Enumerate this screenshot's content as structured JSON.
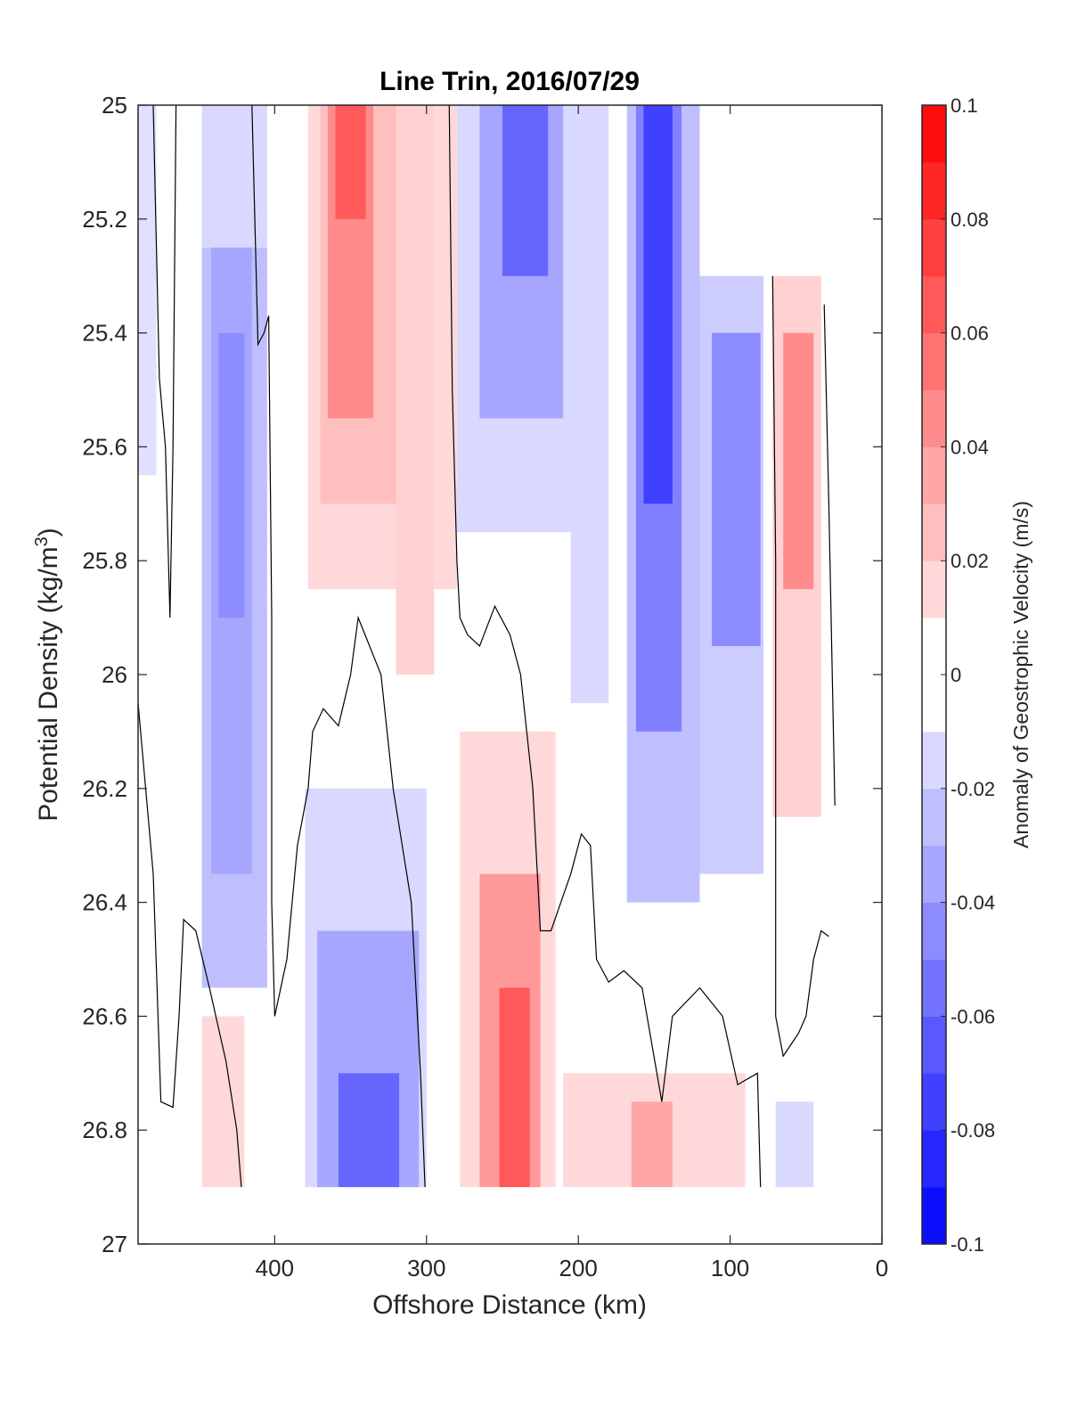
{
  "chart_data": {
    "type": "contour",
    "title": "Line Trin, 2016/07/29",
    "xlabel": "Offshore Distance (km)",
    "ylabel": {
      "text": "Potential Density (kg/m",
      "sup": "3",
      "close": ")"
    },
    "colorbar_label": "Anomaly of Geostrophic Velocity (m/s)",
    "xlim": [
      490,
      0
    ],
    "ylim": [
      25,
      27
    ],
    "y_reversed": true,
    "x_reversed": true,
    "xticks": [
      400,
      300,
      200,
      100,
      0
    ],
    "xtick_labels": [
      "400",
      "300",
      "200",
      "100",
      "0"
    ],
    "yticks": [
      25,
      25.2,
      25.4,
      25.6,
      25.8,
      26,
      26.2,
      26.4,
      26.6,
      26.8,
      27
    ],
    "ytick_labels": [
      "25",
      "25.2",
      "25.4",
      "25.6",
      "25.8",
      "26",
      "26.2",
      "26.4",
      "26.6",
      "26.8",
      "27"
    ],
    "colorbar": {
      "limits": [
        -0.1,
        0.1
      ],
      "step": 0.01,
      "ticks": [
        0.1,
        0.08,
        0.06,
        0.04,
        0.02,
        0,
        -0.02,
        -0.04,
        -0.06,
        -0.08,
        -0.1
      ],
      "tick_labels": [
        "0.1",
        "0.08",
        "0.06",
        "0.04",
        "0.02",
        "0",
        "-0.02",
        "-0.04",
        "-0.06",
        "-0.08",
        "-0.1"
      ],
      "colormap": "blue-white-red"
    },
    "colors": {
      "positive": "#ff0000",
      "negative": "#0000ff",
      "zero_band": "#ffffff",
      "contour_line": "#000000"
    },
    "data_extent": {
      "x": [
        490,
        30
      ],
      "y_bottom": 26.9
    },
    "cells": [
      {
        "x": [
          490,
          478
        ],
        "y": [
          25.0,
          25.65
        ],
        "v": -0.012
      },
      {
        "x": [
          448,
          405
        ],
        "y": [
          25.0,
          25.25
        ],
        "v": -0.015
      },
      {
        "x": [
          448,
          405
        ],
        "y": [
          25.25,
          26.55
        ],
        "v": -0.025
      },
      {
        "x": [
          442,
          415
        ],
        "y": [
          25.25,
          26.35
        ],
        "v": -0.035
      },
      {
        "x": [
          437,
          420
        ],
        "y": [
          25.4,
          25.9
        ],
        "v": -0.045
      },
      {
        "x": [
          378,
          280
        ],
        "y": [
          25.0,
          25.85
        ],
        "v": 0.015
      },
      {
        "x": [
          370,
          300
        ],
        "y": [
          25.0,
          25.7
        ],
        "v": 0.025
      },
      {
        "x": [
          365,
          335
        ],
        "y": [
          25.0,
          25.55
        ],
        "v": 0.045
      },
      {
        "x": [
          360,
          340
        ],
        "y": [
          25.0,
          25.2
        ],
        "v": 0.065
      },
      {
        "x": [
          320,
          295
        ],
        "y": [
          25.0,
          26.0
        ],
        "v": 0.018
      },
      {
        "x": [
          280,
          195
        ],
        "y": [
          25.0,
          25.75
        ],
        "v": -0.015
      },
      {
        "x": [
          265,
          210
        ],
        "y": [
          25.0,
          25.55
        ],
        "v": -0.035
      },
      {
        "x": [
          250,
          220
        ],
        "y": [
          25.0,
          25.3
        ],
        "v": -0.06
      },
      {
        "x": [
          205,
          180
        ],
        "y": [
          25.0,
          26.05
        ],
        "v": -0.015
      },
      {
        "x": [
          168,
          120
        ],
        "y": [
          25.0,
          26.4
        ],
        "v": -0.025
      },
      {
        "x": [
          162,
          132
        ],
        "y": [
          25.0,
          26.1
        ],
        "v": -0.05
      },
      {
        "x": [
          157,
          138
        ],
        "y": [
          25.0,
          25.7
        ],
        "v": -0.075
      },
      {
        "x": [
          120,
          78
        ],
        "y": [
          25.3,
          26.35
        ],
        "v": -0.02
      },
      {
        "x": [
          112,
          80
        ],
        "y": [
          25.4,
          25.95
        ],
        "v": -0.045
      },
      {
        "x": [
          72,
          40
        ],
        "y": [
          25.3,
          26.25
        ],
        "v": 0.018
      },
      {
        "x": [
          65,
          45
        ],
        "y": [
          25.4,
          25.85
        ],
        "v": 0.045
      },
      {
        "x": [
          448,
          420
        ],
        "y": [
          26.6,
          26.9
        ],
        "v": 0.015
      },
      {
        "x": [
          380,
          300
        ],
        "y": [
          26.2,
          26.9
        ],
        "v": -0.015
      },
      {
        "x": [
          372,
          305
        ],
        "y": [
          26.45,
          26.9
        ],
        "v": -0.035
      },
      {
        "x": [
          358,
          318
        ],
        "y": [
          26.7,
          26.9
        ],
        "v": -0.06
      },
      {
        "x": [
          278,
          215
        ],
        "y": [
          26.1,
          26.9
        ],
        "v": 0.015
      },
      {
        "x": [
          265,
          225
        ],
        "y": [
          26.35,
          26.9
        ],
        "v": 0.04
      },
      {
        "x": [
          252,
          232
        ],
        "y": [
          26.55,
          26.9
        ],
        "v": 0.065
      },
      {
        "x": [
          210,
          90
        ],
        "y": [
          26.7,
          26.9
        ],
        "v": 0.015
      },
      {
        "x": [
          165,
          138
        ],
        "y": [
          26.75,
          26.9
        ],
        "v": 0.035
      },
      {
        "x": [
          70,
          45
        ],
        "y": [
          26.75,
          26.9
        ],
        "v": -0.015
      }
    ],
    "zero_contours": [
      [
        [
          480,
          25.0
        ],
        [
          476,
          25.48
        ],
        [
          472,
          25.6
        ],
        [
          469,
          25.9
        ],
        [
          467,
          25.6
        ],
        [
          465,
          25.0
        ]
      ],
      [
        [
          415,
          25.0
        ],
        [
          411,
          25.42
        ],
        [
          407,
          25.4
        ],
        [
          404,
          25.37
        ],
        [
          402,
          25.9
        ],
        [
          402,
          26.4
        ],
        [
          400,
          26.6
        ],
        [
          392,
          26.5
        ],
        [
          385,
          26.3
        ],
        [
          378,
          26.2
        ],
        [
          375,
          26.1
        ],
        [
          368,
          26.06
        ],
        [
          358,
          26.09
        ],
        [
          350,
          26.0
        ],
        [
          345,
          25.9
        ],
        [
          330,
          26.0
        ],
        [
          322,
          26.2
        ],
        [
          310,
          26.4
        ],
        [
          304,
          26.7
        ],
        [
          301,
          26.9
        ]
      ],
      [
        [
          285,
          25.0
        ],
        [
          283,
          25.5
        ],
        [
          280,
          25.8
        ],
        [
          278,
          25.9
        ],
        [
          273,
          25.93
        ],
        [
          265,
          25.95
        ],
        [
          255,
          25.88
        ],
        [
          245,
          25.93
        ],
        [
          238,
          26.0
        ],
        [
          230,
          26.2
        ],
        [
          225,
          26.45
        ],
        [
          218,
          26.45
        ],
        [
          205,
          26.35
        ],
        [
          198,
          26.28
        ],
        [
          192,
          26.3
        ],
        [
          188,
          26.5
        ],
        [
          180,
          26.54
        ],
        [
          170,
          26.52
        ],
        [
          158,
          26.55
        ],
        [
          145,
          26.75
        ],
        [
          138,
          26.6
        ],
        [
          120,
          26.55
        ],
        [
          105,
          26.6
        ],
        [
          95,
          26.72
        ],
        [
          82,
          26.7
        ],
        [
          80,
          26.9
        ]
      ],
      [
        [
          490,
          26.05
        ],
        [
          485,
          26.2
        ],
        [
          480,
          26.35
        ],
        [
          475,
          26.75
        ],
        [
          467,
          26.76
        ],
        [
          463,
          26.6
        ],
        [
          460,
          26.43
        ],
        [
          452,
          26.45
        ],
        [
          443,
          26.55
        ],
        [
          432,
          26.68
        ],
        [
          425,
          26.8
        ],
        [
          422,
          26.9
        ]
      ],
      [
        [
          72,
          25.3
        ],
        [
          70,
          25.8
        ],
        [
          70,
          26.6
        ],
        [
          65,
          26.67
        ],
        [
          55,
          26.63
        ],
        [
          50,
          26.6
        ],
        [
          45,
          26.5
        ],
        [
          40,
          26.45
        ],
        [
          35,
          26.46
        ]
      ],
      [
        [
          38,
          25.35
        ],
        [
          35,
          25.7
        ],
        [
          31,
          26.23
        ]
      ]
    ]
  }
}
